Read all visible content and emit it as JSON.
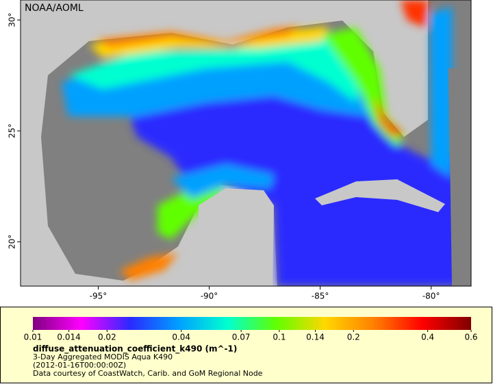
{
  "map": {
    "credit": "NOAA/AOML",
    "xlim": [
      -98.5,
      -78.2
    ],
    "ylim": [
      18,
      30.9
    ],
    "xticks": [
      {
        "value": -95,
        "label": "-95°"
      },
      {
        "value": -90,
        "label": "-90°"
      },
      {
        "value": -85,
        "label": "-85°"
      },
      {
        "value": -80,
        "label": "-80°"
      }
    ],
    "yticks": [
      {
        "value": 20,
        "label": "20°"
      },
      {
        "value": 25,
        "label": "25°"
      },
      {
        "value": 30,
        "label": "30°"
      }
    ]
  },
  "legend": {
    "type": "colorbar",
    "scale": "log",
    "range": [
      0.01,
      0.6
    ],
    "ticks": [
      0.01,
      0.014,
      0.02,
      0.04,
      0.07,
      0.1,
      0.14,
      0.2,
      0.4,
      0.6
    ],
    "colors": [
      "#7f007f",
      "#ff00ff",
      "#2a2aff",
      "#00a0ff",
      "#00ffd0",
      "#60ff00",
      "#ffd700",
      "#ff8000",
      "#ff0000",
      "#800000"
    ],
    "title": "diffuse_attenuation_coefficient_k490 (m^-1)",
    "lines": [
      "3-Day Aggregated MODIS Aqua K490",
      "(2012-01-16T00:00:00Z)",
      "Data courtesy of CoastWatch, Carib. and GoM Regional Node"
    ]
  }
}
